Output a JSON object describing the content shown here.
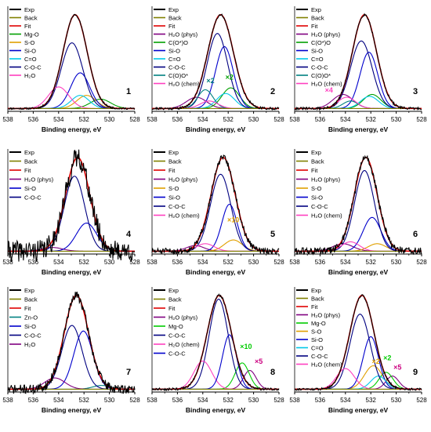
{
  "chart_data": [
    {
      "type": "line",
      "panel_label": "1",
      "xlabel": "Binding energy, eV",
      "xlim": [
        538,
        528
      ],
      "x_ticks": [
        "538",
        "536",
        "534",
        "532",
        "530",
        "528"
      ],
      "series": [
        {
          "name": "Exp",
          "color": "#000000",
          "center": 532.7,
          "width": 0.95,
          "amp": 1.0,
          "noise": 0.006,
          "seed": 11
        },
        {
          "name": "Back",
          "color": "#808000",
          "center": 532.7,
          "width": 0.95,
          "amp": 0.0
        },
        {
          "name": "Fit",
          "color": "#e00000",
          "center": 532.7,
          "width": 0.95,
          "amp": 1.0
        },
        {
          "name": "Mg-O",
          "color": "#00a000",
          "center": 530.7,
          "width": 0.8,
          "amp": 0.1
        },
        {
          "name": "S-O",
          "color": "#e0a000",
          "center": 531.8,
          "width": 0.75,
          "amp": 0.14
        },
        {
          "name": "Si-O",
          "color": "#0000cc",
          "center": 532.3,
          "width": 0.75,
          "amp": 0.38
        },
        {
          "name": "C=O",
          "color": "#00c8e8",
          "center": 532.3,
          "width": 0.7,
          "amp": 0.14
        },
        {
          "name": "C-O-C",
          "color": "#000080",
          "center": 532.95,
          "width": 0.85,
          "amp": 0.7
        },
        {
          "name": "H₂O",
          "color": "#ff40c0",
          "center": 534.0,
          "width": 0.8,
          "amp": 0.23
        }
      ],
      "multipliers": []
    },
    {
      "type": "line",
      "panel_label": "2",
      "xlabel": "Binding energy, eV",
      "xlim": [
        538,
        528
      ],
      "x_ticks": [
        "538",
        "536",
        "534",
        "532",
        "530",
        "528"
      ],
      "series": [
        {
          "name": "Exp",
          "color": "#000000",
          "center": 532.6,
          "width": 1.0,
          "amp": 1.0,
          "noise": 0.008,
          "seed": 21
        },
        {
          "name": "Back",
          "color": "#808000",
          "center": 532.6,
          "width": 1.0,
          "amp": 0.0
        },
        {
          "name": "Fit",
          "color": "#e00000",
          "center": 532.6,
          "width": 1.0,
          "amp": 1.0
        },
        {
          "name": "H₂O (phys)",
          "color": "#800080",
          "center": 534.5,
          "width": 0.8,
          "amp": 0.12
        },
        {
          "name": "C(O*)O",
          "color": "#00a000",
          "center": 531.8,
          "width": 0.7,
          "amp": 0.22
        },
        {
          "name": "Si-O",
          "color": "#0000cc",
          "center": 532.3,
          "width": 0.7,
          "amp": 0.66
        },
        {
          "name": "C=O",
          "color": "#00c8e8",
          "center": 532.2,
          "width": 0.7,
          "amp": 0.16
        },
        {
          "name": "C-O-C",
          "color": "#000080",
          "center": 532.85,
          "width": 0.8,
          "amp": 0.8
        },
        {
          "name": "C(O)O*",
          "color": "#008080",
          "center": 533.8,
          "width": 0.6,
          "amp": 0.2
        },
        {
          "name": "H₂O (chem)",
          "color": "#ff40c0",
          "center": 533.5,
          "width": 0.7,
          "amp": 0.08
        }
      ],
      "multipliers": [
        {
          "text": "×2",
          "color": "#008080",
          "x": 533.4,
          "y": 0.3
        },
        {
          "text": "×2",
          "color": "#00a000",
          "x": 531.9,
          "y": 0.34
        }
      ]
    },
    {
      "type": "line",
      "panel_label": "3",
      "xlabel": "Binding energy, eV",
      "xlim": [
        538,
        528
      ],
      "x_ticks": [
        "538",
        "536",
        "534",
        "532",
        "530",
        "528"
      ],
      "series": [
        {
          "name": "Exp",
          "color": "#000000",
          "center": 532.5,
          "width": 0.95,
          "amp": 1.0,
          "noise": 0.008,
          "seed": 31
        },
        {
          "name": "Back",
          "color": "#808000",
          "center": 532.5,
          "width": 0.95,
          "amp": 0.0
        },
        {
          "name": "Fit",
          "color": "#e00000",
          "center": 532.5,
          "width": 0.95,
          "amp": 1.0
        },
        {
          "name": "H₂O (phys)",
          "color": "#800080",
          "center": 534.2,
          "width": 0.8,
          "amp": 0.15
        },
        {
          "name": "C(O*)O",
          "color": "#00a000",
          "center": 531.9,
          "width": 0.7,
          "amp": 0.15
        },
        {
          "name": "Si-O",
          "color": "#0000cc",
          "center": 532.15,
          "width": 0.7,
          "amp": 0.6
        },
        {
          "name": "C=O",
          "color": "#00c8e8",
          "center": 532.1,
          "width": 0.7,
          "amp": 0.13
        },
        {
          "name": "C-O-C",
          "color": "#000080",
          "center": 532.75,
          "width": 0.85,
          "amp": 0.72
        },
        {
          "name": "C(O)O*",
          "color": "#008080",
          "center": 533.6,
          "width": 0.6,
          "amp": 0.08
        },
        {
          "name": "H₂O (chem)",
          "color": "#ff40c0",
          "center": 533.9,
          "width": 0.7,
          "amp": 0.12
        }
      ],
      "multipliers": [
        {
          "text": "×4",
          "color": "#ff40c0",
          "x": 535.3,
          "y": 0.2
        }
      ]
    },
    {
      "type": "line",
      "panel_label": "4",
      "xlabel": "Binding energy, eV",
      "xlim": [
        538,
        528
      ],
      "x_ticks": [
        "538",
        "536",
        "534",
        "532",
        "530",
        "528"
      ],
      "series": [
        {
          "name": "Exp",
          "color": "#000000",
          "center": 532.5,
          "width": 0.95,
          "amp": 1.0,
          "noise": 0.07,
          "seed": 41
        },
        {
          "name": "Back",
          "color": "#808000",
          "center": 532.5,
          "width": 0.95,
          "amp": 0.0
        },
        {
          "name": "Fit",
          "color": "#e00000",
          "center": 532.5,
          "width": 0.95,
          "amp": 1.0
        },
        {
          "name": "H₂O (phys)",
          "color": "#800080",
          "center": 534.5,
          "width": 0.8,
          "amp": 0.04
        },
        {
          "name": "Si-O",
          "color": "#0000cc",
          "center": 531.8,
          "width": 0.8,
          "amp": 0.3
        },
        {
          "name": "C-O-C",
          "color": "#000080",
          "center": 532.75,
          "width": 0.8,
          "amp": 0.8
        }
      ],
      "multipliers": []
    },
    {
      "type": "line",
      "panel_label": "5",
      "xlabel": "Binding energy, eV",
      "xlim": [
        538,
        528
      ],
      "x_ticks": [
        "538",
        "536",
        "534",
        "532",
        "530",
        "528"
      ],
      "series": [
        {
          "name": "Exp",
          "color": "#000000",
          "center": 532.4,
          "width": 0.95,
          "amp": 1.0,
          "noise": 0.02,
          "seed": 51
        },
        {
          "name": "Back",
          "color": "#808000",
          "center": 532.4,
          "width": 0.95,
          "amp": 0.0
        },
        {
          "name": "Fit",
          "color": "#e00000",
          "center": 532.4,
          "width": 0.95,
          "amp": 1.0
        },
        {
          "name": "H₂O (phys)",
          "color": "#800080",
          "center": 534.6,
          "width": 0.7,
          "amp": 0.06
        },
        {
          "name": "S-O",
          "color": "#e0a000",
          "center": 531.6,
          "width": 0.7,
          "amp": 0.12
        },
        {
          "name": "Si-O",
          "color": "#0000cc",
          "center": 531.9,
          "width": 0.6,
          "amp": 0.5
        },
        {
          "name": "C-O-C",
          "color": "#000080",
          "center": 532.6,
          "width": 0.8,
          "amp": 0.82
        },
        {
          "name": "H₂O (chem)",
          "color": "#ff40c0",
          "center": 533.8,
          "width": 0.7,
          "amp": 0.08
        }
      ],
      "multipliers": [
        {
          "text": "×10",
          "color": "#e0a000",
          "x": 531.6,
          "y": 0.34
        }
      ]
    },
    {
      "type": "line",
      "panel_label": "6",
      "xlabel": "Binding energy, eV",
      "xlim": [
        538,
        528
      ],
      "x_ticks": [
        "538",
        "536",
        "534",
        "532",
        "530",
        "528"
      ],
      "series": [
        {
          "name": "Exp",
          "color": "#000000",
          "center": 532.4,
          "width": 0.9,
          "amp": 1.0,
          "noise": 0.025,
          "seed": 61
        },
        {
          "name": "Back",
          "color": "#808000",
          "center": 532.4,
          "width": 0.9,
          "amp": 0.0
        },
        {
          "name": "Fit",
          "color": "#e00000",
          "center": 532.4,
          "width": 0.9,
          "amp": 1.0
        },
        {
          "name": "H₂O (phys)",
          "color": "#800080",
          "center": 534.2,
          "width": 0.8,
          "amp": 0.08
        },
        {
          "name": "S-O",
          "color": "#e0a000",
          "center": 531.5,
          "width": 0.7,
          "amp": 0.08
        },
        {
          "name": "Si-O",
          "color": "#0000cc",
          "center": 531.9,
          "width": 0.7,
          "amp": 0.36
        },
        {
          "name": "C-O-C",
          "color": "#000080",
          "center": 532.5,
          "width": 0.78,
          "amp": 0.86
        },
        {
          "name": "H₂O (chem)",
          "color": "#ff40c0",
          "center": 533.6,
          "width": 0.7,
          "amp": 0.1
        }
      ],
      "multipliers": []
    },
    {
      "type": "line",
      "panel_label": "7",
      "xlabel": "Binding energy, eV",
      "xlim": [
        538,
        528
      ],
      "x_ticks": [
        "538",
        "536",
        "534",
        "532",
        "530",
        "528"
      ],
      "series": [
        {
          "name": "Exp",
          "color": "#000000",
          "center": 532.6,
          "width": 0.95,
          "amp": 1.0,
          "noise": 0.03,
          "seed": 71
        },
        {
          "name": "Back",
          "color": "#808000",
          "center": 532.6,
          "width": 0.95,
          "amp": 0.0
        },
        {
          "name": "Fit",
          "color": "#e00000",
          "center": 532.6,
          "width": 0.95,
          "amp": 1.0
        },
        {
          "name": "Zn-O",
          "color": "#008080",
          "center": 530.6,
          "width": 0.7,
          "amp": 0.04
        },
        {
          "name": "Si-O",
          "color": "#0000cc",
          "center": 532.05,
          "width": 0.75,
          "amp": 0.62
        },
        {
          "name": "C-O-C",
          "color": "#000080",
          "center": 532.95,
          "width": 0.8,
          "amp": 0.68
        },
        {
          "name": "H₂O",
          "color": "#800080",
          "center": 534.3,
          "width": 0.8,
          "amp": 0.12
        }
      ],
      "multipliers": []
    },
    {
      "type": "line",
      "panel_label": "8",
      "xlabel": "Binding energy, eV",
      "xlim": [
        538,
        528
      ],
      "x_ticks": [
        "538",
        "536",
        "534",
        "532",
        "530",
        "528"
      ],
      "series": [
        {
          "name": "Exp",
          "color": "#000000",
          "center": 532.7,
          "width": 0.95,
          "amp": 1.0,
          "noise": 0.008,
          "seed": 81
        },
        {
          "name": "Back",
          "color": "#808000",
          "center": 532.7,
          "width": 0.95,
          "amp": 0.0
        },
        {
          "name": "Fit",
          "color": "#e00000",
          "center": 532.7,
          "width": 0.95,
          "amp": 1.0
        },
        {
          "name": "H₂O (phys)",
          "color": "#800080",
          "center": 530.3,
          "width": 0.5,
          "amp": 0.2
        },
        {
          "name": "Mg-O",
          "color": "#00cc00",
          "center": 530.9,
          "width": 0.55,
          "amp": 0.28
        },
        {
          "name": "C-O-C",
          "color": "#000080",
          "center": 532.75,
          "width": 0.75,
          "amp": 0.96
        },
        {
          "name": "H₂O (chem)",
          "color": "#ff40c0",
          "center": 534.0,
          "width": 0.7,
          "amp": 0.3
        },
        {
          "name": "C-O-C",
          "color": "#0000cc",
          "center": 531.9,
          "width": 0.55,
          "amp": 0.58
        }
      ],
      "multipliers": [
        {
          "text": "×10",
          "color": "#00cc00",
          "x": 530.6,
          "y": 0.46
        },
        {
          "text": "×5",
          "color": "#cc0080",
          "x": 529.6,
          "y": 0.3
        }
      ]
    },
    {
      "type": "line",
      "panel_label": "9",
      "xlabel": "Binding energy, eV",
      "xlim": [
        538,
        528
      ],
      "x_ticks": [
        "538",
        "536",
        "534",
        "532",
        "530",
        "528"
      ],
      "series": [
        {
          "name": "Exp",
          "color": "#000000",
          "center": 532.7,
          "width": 0.95,
          "amp": 1.0,
          "noise": 0.007,
          "seed": 91
        },
        {
          "name": "Back",
          "color": "#808000",
          "center": 532.7,
          "width": 0.95,
          "amp": 0.0
        },
        {
          "name": "Fit",
          "color": "#e00000",
          "center": 532.7,
          "width": 0.95,
          "amp": 1.0
        },
        {
          "name": "H₂O (phys)",
          "color": "#800080",
          "center": 530.3,
          "width": 0.5,
          "amp": 0.14
        },
        {
          "name": "Mg-O",
          "color": "#00cc00",
          "center": 530.8,
          "width": 0.55,
          "amp": 0.18
        },
        {
          "name": "S-O",
          "color": "#e0a000",
          "center": 531.8,
          "width": 0.7,
          "amp": 0.25
        },
        {
          "name": "Si-O",
          "color": "#0000cc",
          "center": 532.0,
          "width": 0.6,
          "amp": 0.56
        },
        {
          "name": "C=O",
          "color": "#00c8e8",
          "center": 531.4,
          "width": 0.6,
          "amp": 0.14
        },
        {
          "name": "C-O-C",
          "color": "#000080",
          "center": 532.85,
          "width": 0.8,
          "amp": 0.8
        },
        {
          "name": "H₂O (chem)",
          "color": "#ff40c0",
          "center": 534.0,
          "width": 0.7,
          "amp": 0.22
        }
      ],
      "multipliers": [
        {
          "text": "×2",
          "color": "#e0a000",
          "x": 531.6,
          "y": 0.3
        },
        {
          "text": "×2",
          "color": "#00cc00",
          "x": 530.7,
          "y": 0.34
        },
        {
          "text": "×5",
          "color": "#cc0080",
          "x": 529.9,
          "y": 0.24
        }
      ]
    }
  ]
}
